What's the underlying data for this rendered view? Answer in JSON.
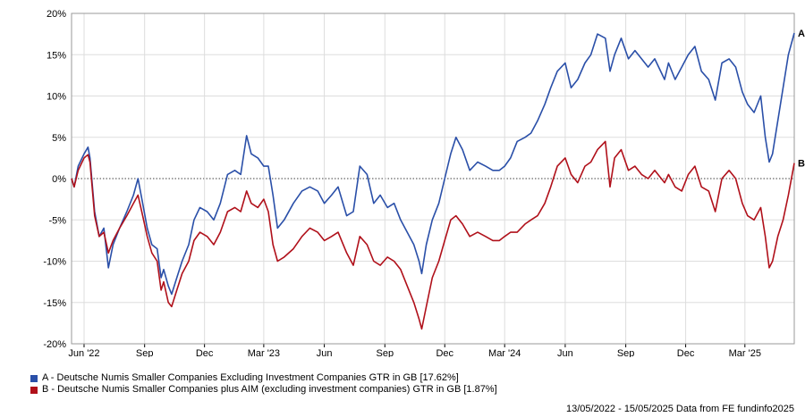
{
  "chart_data": {
    "type": "line",
    "title": "",
    "xlabel": "",
    "ylabel": "",
    "x_range": [
      "2022-05-13",
      "2025-05-15"
    ],
    "ylim": [
      -20,
      20
    ],
    "y_ticks": [
      20,
      15,
      10,
      5,
      0,
      -5,
      -10,
      -15,
      -20
    ],
    "y_tick_labels": [
      "20%",
      "15%",
      "10%",
      "5%",
      "0%",
      "-5%",
      "-10%",
      "-15%",
      "-20%"
    ],
    "x_ticks": [
      {
        "date": "2022-06-01",
        "label": "Jun '22"
      },
      {
        "date": "2022-09-01",
        "label": "Sep"
      },
      {
        "date": "2022-12-01",
        "label": "Dec"
      },
      {
        "date": "2023-03-01",
        "label": "Mar '23"
      },
      {
        "date": "2023-06-01",
        "label": "Jun"
      },
      {
        "date": "2023-09-01",
        "label": "Sep"
      },
      {
        "date": "2023-12-01",
        "label": "Dec"
      },
      {
        "date": "2024-03-01",
        "label": "Mar '24"
      },
      {
        "date": "2024-06-01",
        "label": "Jun"
      },
      {
        "date": "2024-09-01",
        "label": "Sep"
      },
      {
        "date": "2024-12-01",
        "label": "Dec"
      },
      {
        "date": "2025-03-01",
        "label": "Mar '25"
      }
    ],
    "grid": true,
    "zero_line": "dotted",
    "legend_position": "bottom-left",
    "series": [
      {
        "name": "A - Deutsche Numis Smaller Companies Excluding Investment Companies GTR in GB [17.62%]",
        "end_label": "A",
        "color": "#2a4fa8",
        "points": [
          [
            "2022-05-13",
            0
          ],
          [
            "2022-05-17",
            -1.0
          ],
          [
            "2022-05-23",
            1.5
          ],
          [
            "2022-06-01",
            3.0
          ],
          [
            "2022-06-07",
            3.8
          ],
          [
            "2022-06-10",
            2.5
          ],
          [
            "2022-06-17",
            -4.0
          ],
          [
            "2022-06-24",
            -7.0
          ],
          [
            "2022-07-01",
            -6.0
          ],
          [
            "2022-07-08",
            -10.8
          ],
          [
            "2022-07-15",
            -8.0
          ],
          [
            "2022-07-25",
            -6.0
          ],
          [
            "2022-08-05",
            -4.0
          ],
          [
            "2022-08-15",
            -2.0
          ],
          [
            "2022-08-22",
            0
          ],
          [
            "2022-08-29",
            -3.0
          ],
          [
            "2022-09-05",
            -6.0
          ],
          [
            "2022-09-12",
            -8.0
          ],
          [
            "2022-09-20",
            -8.5
          ],
          [
            "2022-09-26",
            -12.0
          ],
          [
            "2022-09-30",
            -11.0
          ],
          [
            "2022-10-07",
            -13.0
          ],
          [
            "2022-10-12",
            -14.0
          ],
          [
            "2022-10-20",
            -12.0
          ],
          [
            "2022-10-28",
            -10.0
          ],
          [
            "2022-11-07",
            -8.0
          ],
          [
            "2022-11-15",
            -5.0
          ],
          [
            "2022-11-24",
            -3.5
          ],
          [
            "2022-12-05",
            -4.0
          ],
          [
            "2022-12-15",
            -5.0
          ],
          [
            "2022-12-25",
            -3.0
          ],
          [
            "2023-01-05",
            0.5
          ],
          [
            "2023-01-16",
            1.0
          ],
          [
            "2023-01-25",
            0.5
          ],
          [
            "2023-02-03",
            5.2
          ],
          [
            "2023-02-10",
            3.0
          ],
          [
            "2023-02-20",
            2.5
          ],
          [
            "2023-03-01",
            1.5
          ],
          [
            "2023-03-08",
            1.5
          ],
          [
            "2023-03-15",
            -2.0
          ],
          [
            "2023-03-22",
            -6.0
          ],
          [
            "2023-04-01",
            -5.0
          ],
          [
            "2023-04-15",
            -3.0
          ],
          [
            "2023-04-28",
            -1.5
          ],
          [
            "2023-05-10",
            -1.0
          ],
          [
            "2023-05-22",
            -1.5
          ],
          [
            "2023-06-01",
            -3.0
          ],
          [
            "2023-06-12",
            -2.0
          ],
          [
            "2023-06-22",
            -1.0
          ],
          [
            "2023-07-05",
            -4.5
          ],
          [
            "2023-07-15",
            -4.0
          ],
          [
            "2023-07-25",
            1.5
          ],
          [
            "2023-08-05",
            0.5
          ],
          [
            "2023-08-15",
            -3.0
          ],
          [
            "2023-08-25",
            -2.0
          ],
          [
            "2023-09-05",
            -3.5
          ],
          [
            "2023-09-15",
            -3.0
          ],
          [
            "2023-09-25",
            -5.0
          ],
          [
            "2023-10-05",
            -6.5
          ],
          [
            "2023-10-15",
            -8.0
          ],
          [
            "2023-10-23",
            -10.0
          ],
          [
            "2023-10-27",
            -11.5
          ],
          [
            "2023-11-03",
            -8.0
          ],
          [
            "2023-11-12",
            -5.0
          ],
          [
            "2023-11-22",
            -3.0
          ],
          [
            "2023-12-01",
            0
          ],
          [
            "2023-12-10",
            3.0
          ],
          [
            "2023-12-18",
            5.0
          ],
          [
            "2023-12-28",
            3.5
          ],
          [
            "2024-01-08",
            1.0
          ],
          [
            "2024-01-20",
            2.0
          ],
          [
            "2024-02-01",
            1.5
          ],
          [
            "2024-02-12",
            1.0
          ],
          [
            "2024-02-22",
            1.0
          ],
          [
            "2024-03-01",
            1.5
          ],
          [
            "2024-03-10",
            2.5
          ],
          [
            "2024-03-20",
            4.5
          ],
          [
            "2024-04-01",
            5.0
          ],
          [
            "2024-04-10",
            5.5
          ],
          [
            "2024-04-20",
            7.0
          ],
          [
            "2024-05-01",
            9.0
          ],
          [
            "2024-05-10",
            11.0
          ],
          [
            "2024-05-20",
            13.0
          ],
          [
            "2024-06-01",
            14.0
          ],
          [
            "2024-06-10",
            11.0
          ],
          [
            "2024-06-20",
            12.0
          ],
          [
            "2024-07-01",
            14.0
          ],
          [
            "2024-07-10",
            15.0
          ],
          [
            "2024-07-20",
            17.5
          ],
          [
            "2024-08-01",
            17.0
          ],
          [
            "2024-08-08",
            13.0
          ],
          [
            "2024-08-15",
            15.0
          ],
          [
            "2024-08-25",
            17.0
          ],
          [
            "2024-09-05",
            14.5
          ],
          [
            "2024-09-15",
            15.5
          ],
          [
            "2024-09-25",
            14.5
          ],
          [
            "2024-10-05",
            13.5
          ],
          [
            "2024-10-15",
            14.5
          ],
          [
            "2024-10-30",
            12.0
          ],
          [
            "2024-11-05",
            14.0
          ],
          [
            "2024-11-15",
            12.0
          ],
          [
            "2024-11-25",
            13.5
          ],
          [
            "2024-12-05",
            15.0
          ],
          [
            "2024-12-15",
            16.0
          ],
          [
            "2024-12-25",
            13.0
          ],
          [
            "2025-01-05",
            12.0
          ],
          [
            "2025-01-15",
            9.5
          ],
          [
            "2025-01-25",
            14.0
          ],
          [
            "2025-02-05",
            14.5
          ],
          [
            "2025-02-15",
            13.5
          ],
          [
            "2025-02-25",
            10.5
          ],
          [
            "2025-03-05",
            9.0
          ],
          [
            "2025-03-15",
            8.0
          ],
          [
            "2025-03-25",
            10.0
          ],
          [
            "2025-04-01",
            5.0
          ],
          [
            "2025-04-07",
            2.0
          ],
          [
            "2025-04-12",
            3.0
          ],
          [
            "2025-04-20",
            7.0
          ],
          [
            "2025-04-28",
            11.0
          ],
          [
            "2025-05-06",
            15.0
          ],
          [
            "2025-05-15",
            17.62
          ]
        ]
      },
      {
        "name": "B - Deutsche Numis Smaller Companies plus AIM (excluding investment companies) GTR in GB [1.87%]",
        "end_label": "B",
        "color": "#b0101a",
        "points": [
          [
            "2022-05-13",
            0
          ],
          [
            "2022-05-17",
            -1.0
          ],
          [
            "2022-05-23",
            1.0
          ],
          [
            "2022-06-01",
            2.5
          ],
          [
            "2022-06-07",
            2.9
          ],
          [
            "2022-06-10",
            2.0
          ],
          [
            "2022-06-17",
            -4.5
          ],
          [
            "2022-06-24",
            -7.0
          ],
          [
            "2022-07-01",
            -6.5
          ],
          [
            "2022-07-08",
            -9.0
          ],
          [
            "2022-07-15",
            -7.5
          ],
          [
            "2022-07-25",
            -6.0
          ],
          [
            "2022-08-05",
            -4.5
          ],
          [
            "2022-08-15",
            -3.0
          ],
          [
            "2022-08-22",
            -2.0
          ],
          [
            "2022-08-29",
            -4.5
          ],
          [
            "2022-09-05",
            -7.0
          ],
          [
            "2022-09-12",
            -9.0
          ],
          [
            "2022-09-20",
            -10.0
          ],
          [
            "2022-09-26",
            -13.5
          ],
          [
            "2022-09-30",
            -12.5
          ],
          [
            "2022-10-07",
            -15.0
          ],
          [
            "2022-10-12",
            -15.5
          ],
          [
            "2022-10-20",
            -13.5
          ],
          [
            "2022-10-28",
            -11.5
          ],
          [
            "2022-11-07",
            -10.0
          ],
          [
            "2022-11-15",
            -7.5
          ],
          [
            "2022-11-24",
            -6.5
          ],
          [
            "2022-12-05",
            -7.0
          ],
          [
            "2022-12-15",
            -8.0
          ],
          [
            "2022-12-25",
            -6.5
          ],
          [
            "2023-01-05",
            -4.0
          ],
          [
            "2023-01-16",
            -3.5
          ],
          [
            "2023-01-25",
            -4.0
          ],
          [
            "2023-02-03",
            -1.5
          ],
          [
            "2023-02-10",
            -3.0
          ],
          [
            "2023-02-20",
            -3.5
          ],
          [
            "2023-03-01",
            -2.5
          ],
          [
            "2023-03-08",
            -4.0
          ],
          [
            "2023-03-15",
            -8.0
          ],
          [
            "2023-03-22",
            -10.0
          ],
          [
            "2023-04-01",
            -9.5
          ],
          [
            "2023-04-15",
            -8.5
          ],
          [
            "2023-04-28",
            -7.0
          ],
          [
            "2023-05-10",
            -6.0
          ],
          [
            "2023-05-22",
            -6.5
          ],
          [
            "2023-06-01",
            -7.5
          ],
          [
            "2023-06-12",
            -7.0
          ],
          [
            "2023-06-22",
            -6.5
          ],
          [
            "2023-07-05",
            -9.0
          ],
          [
            "2023-07-15",
            -10.5
          ],
          [
            "2023-07-25",
            -7.0
          ],
          [
            "2023-08-05",
            -8.0
          ],
          [
            "2023-08-15",
            -10.0
          ],
          [
            "2023-08-25",
            -10.5
          ],
          [
            "2023-09-05",
            -9.5
          ],
          [
            "2023-09-15",
            -10.0
          ],
          [
            "2023-09-25",
            -11.0
          ],
          [
            "2023-10-05",
            -13.0
          ],
          [
            "2023-10-15",
            -15.0
          ],
          [
            "2023-10-23",
            -17.0
          ],
          [
            "2023-10-27",
            -18.2
          ],
          [
            "2023-11-03",
            -15.5
          ],
          [
            "2023-11-12",
            -12.0
          ],
          [
            "2023-11-22",
            -10.0
          ],
          [
            "2023-12-01",
            -7.5
          ],
          [
            "2023-12-10",
            -5.0
          ],
          [
            "2023-12-18",
            -4.5
          ],
          [
            "2023-12-28",
            -5.5
          ],
          [
            "2024-01-08",
            -7.0
          ],
          [
            "2024-01-20",
            -6.5
          ],
          [
            "2024-02-01",
            -7.0
          ],
          [
            "2024-02-12",
            -7.5
          ],
          [
            "2024-02-22",
            -7.5
          ],
          [
            "2024-03-01",
            -7.0
          ],
          [
            "2024-03-10",
            -6.5
          ],
          [
            "2024-03-20",
            -6.5
          ],
          [
            "2024-04-01",
            -5.5
          ],
          [
            "2024-04-10",
            -5.0
          ],
          [
            "2024-04-20",
            -4.5
          ],
          [
            "2024-05-01",
            -3.0
          ],
          [
            "2024-05-10",
            -1.0
          ],
          [
            "2024-05-20",
            1.5
          ],
          [
            "2024-06-01",
            2.5
          ],
          [
            "2024-06-10",
            0.5
          ],
          [
            "2024-06-20",
            -0.5
          ],
          [
            "2024-07-01",
            1.5
          ],
          [
            "2024-07-10",
            2.0
          ],
          [
            "2024-07-20",
            3.5
          ],
          [
            "2024-08-01",
            4.5
          ],
          [
            "2024-08-08",
            -1.0
          ],
          [
            "2024-08-15",
            2.5
          ],
          [
            "2024-08-25",
            3.5
          ],
          [
            "2024-09-05",
            1.0
          ],
          [
            "2024-09-15",
            1.5
          ],
          [
            "2024-09-25",
            0.5
          ],
          [
            "2024-10-05",
            0.0
          ],
          [
            "2024-10-15",
            1.0
          ],
          [
            "2024-10-30",
            -0.5
          ],
          [
            "2024-11-05",
            0.5
          ],
          [
            "2024-11-15",
            -1.0
          ],
          [
            "2024-11-25",
            -1.5
          ],
          [
            "2024-12-05",
            0.5
          ],
          [
            "2024-12-15",
            1.5
          ],
          [
            "2024-12-25",
            -1.0
          ],
          [
            "2025-01-05",
            -1.5
          ],
          [
            "2025-01-15",
            -4.0
          ],
          [
            "2025-01-25",
            0.0
          ],
          [
            "2025-02-05",
            1.0
          ],
          [
            "2025-02-15",
            0.0
          ],
          [
            "2025-02-25",
            -3.0
          ],
          [
            "2025-03-05",
            -4.5
          ],
          [
            "2025-03-15",
            -5.0
          ],
          [
            "2025-03-25",
            -3.5
          ],
          [
            "2025-04-01",
            -7.0
          ],
          [
            "2025-04-07",
            -10.8
          ],
          [
            "2025-04-12",
            -10.0
          ],
          [
            "2025-04-20",
            -7.0
          ],
          [
            "2025-04-28",
            -5.0
          ],
          [
            "2025-05-06",
            -2.0
          ],
          [
            "2025-05-15",
            1.87
          ]
        ]
      }
    ]
  },
  "source_text": "13/05/2022 - 15/05/2025 Data from FE fundinfo2025"
}
